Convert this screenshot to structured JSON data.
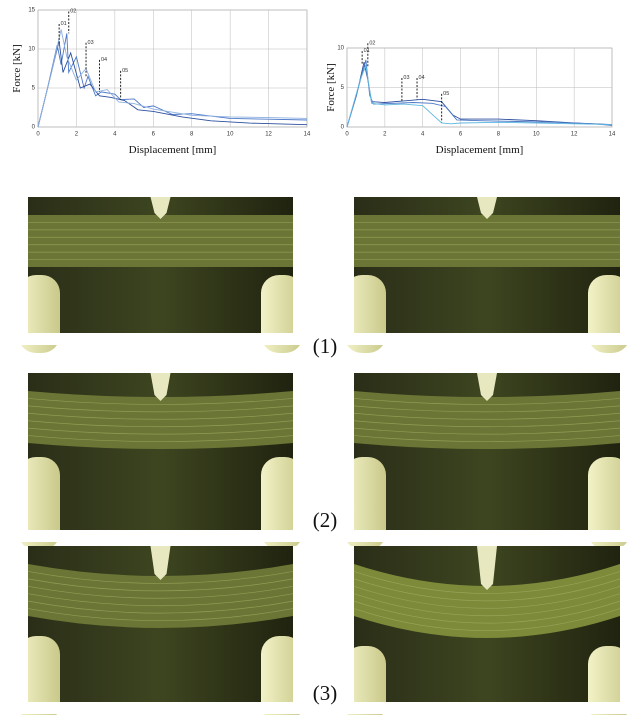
{
  "chart_data": [
    {
      "type": "line",
      "xlabel": "Displacement [mm]",
      "ylabel": "Force [kN]",
      "xlim": [
        0,
        14
      ],
      "ylim": [
        0,
        15
      ],
      "xticks": [
        0,
        2,
        4,
        6,
        8,
        10,
        12,
        14
      ],
      "yticks": [
        0,
        5,
        10,
        15
      ],
      "grid": true,
      "series": [
        {
          "color": "#4a78c8",
          "x": [
            0,
            0.5,
            1.0,
            1.2,
            1.5,
            1.6,
            2.0,
            2.4,
            2.6,
            3.0,
            3.3,
            4.0,
            4.3,
            5.0,
            5.5,
            6.0,
            7.0,
            8.0,
            10.0,
            12.0,
            14.0
          ],
          "values": [
            0,
            5,
            10.5,
            8,
            12,
            7,
            9,
            5,
            6.5,
            4,
            4.5,
            4.2,
            3.5,
            3.6,
            2.5,
            2.7,
            1.6,
            1.7,
            1.1,
            1.0,
            0.9
          ]
        },
        {
          "color": "#2c4f9e",
          "x": [
            0,
            0.6,
            1.1,
            1.3,
            1.7,
            2.2,
            2.7,
            3.2,
            3.8,
            4.5,
            5.2,
            6.0,
            7.5,
            9.0,
            11.0,
            14.0
          ],
          "values": [
            0,
            6,
            11,
            7,
            9.5,
            5,
            5.5,
            4,
            3.8,
            3.4,
            2.2,
            2.0,
            1.3,
            0.8,
            0.5,
            0.3
          ]
        },
        {
          "color": "#8fb0e0",
          "x": [
            0,
            0.7,
            1.2,
            1.5,
            2.0,
            2.5,
            3.0,
            3.6,
            4.2,
            5.0,
            6.0,
            8.0,
            10.0,
            12.0,
            14.0
          ],
          "values": [
            0,
            7,
            12.5,
            9,
            6,
            7.5,
            4.5,
            4.8,
            3.2,
            3.0,
            2.3,
            1.5,
            1.3,
            1.2,
            1.1
          ]
        }
      ],
      "annotations": [
        {
          "text": "01",
          "x": 1.1,
          "y": 13.2,
          "y_end": 10.5
        },
        {
          "text": "02",
          "x": 1.6,
          "y": 14.8,
          "y_end": 12
        },
        {
          "text": "03",
          "x": 2.5,
          "y": 10.8,
          "y_end": 6.5
        },
        {
          "text": "04",
          "x": 3.2,
          "y": 8.6,
          "y_end": 4.5
        },
        {
          "text": "05",
          "x": 4.3,
          "y": 7.2,
          "y_end": 3.5
        }
      ]
    },
    {
      "type": "line",
      "xlabel": "Displacement [mm]",
      "ylabel": "Force [kN]",
      "xlim": [
        0,
        14
      ],
      "ylim": [
        0,
        10
      ],
      "xticks": [
        0,
        2,
        4,
        6,
        8,
        10,
        12,
        14
      ],
      "yticks": [
        0,
        5,
        10
      ],
      "grid": true,
      "series": [
        {
          "color": "#2c4f9e",
          "x": [
            0,
            0.5,
            0.9,
            1.1,
            1.3,
            2.0,
            3.0,
            4.0,
            5.0,
            5.6,
            6.0,
            8.0,
            10.0,
            12.0,
            14.0
          ],
          "values": [
            0,
            4,
            8.2,
            6,
            3.2,
            3.1,
            3.3,
            3.5,
            3.2,
            1.5,
            1.0,
            1.0,
            0.8,
            0.5,
            0.3
          ]
        },
        {
          "color": "#4a78c8",
          "x": [
            0,
            0.6,
            1.0,
            1.2,
            1.4,
            2.5,
            3.5,
            4.5,
            5.2,
            5.8,
            7.0,
            9.0,
            11.0,
            13.0,
            14.0
          ],
          "values": [
            0,
            5,
            8.5,
            4,
            2.9,
            3.0,
            3.1,
            3.0,
            2.6,
            0.9,
            0.8,
            0.7,
            0.6,
            0.4,
            0.2
          ]
        },
        {
          "color": "#5fb8e0",
          "x": [
            0,
            0.7,
            1.0,
            1.3,
            2.0,
            3.0,
            4.0,
            5.0,
            5.5,
            6.0,
            8.0,
            10.0,
            12.0,
            14.0
          ],
          "values": [
            0,
            6,
            7.8,
            3.0,
            2.8,
            2.9,
            2.7,
            0.5,
            0.4,
            0.5,
            0.6,
            0.5,
            0.4,
            0.3
          ]
        }
      ],
      "annotations": [
        {
          "text": "01",
          "x": 0.8,
          "y": 9.6,
          "y_end": 8
        },
        {
          "text": "02",
          "x": 1.1,
          "y": 10.6,
          "y_end": 7.5
        },
        {
          "text": "03",
          "x": 2.9,
          "y": 6.2,
          "y_end": 3.3
        },
        {
          "text": "04",
          "x": 3.7,
          "y": 6.2,
          "y_end": 3.5
        },
        {
          "text": "05",
          "x": 5.0,
          "y": 4.2,
          "y_end": 0.6
        }
      ]
    }
  ],
  "photo_labels": [
    "(1)",
    "(2)",
    "(3)"
  ]
}
